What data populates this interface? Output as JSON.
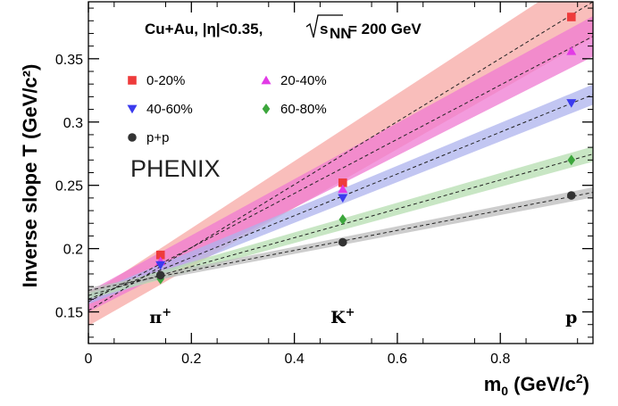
{
  "chart_data": {
    "type": "scatter",
    "title": "",
    "header": {
      "system": "Cu+Au, |η|<0.35,",
      "energy_value": "= 200 GeV",
      "energy_symbol": "s",
      "energy_subscript": "NN"
    },
    "experiment_label": "PHENIX",
    "xlabel": {
      "main": "m",
      "sub": "0",
      "units": " (GeV/c",
      "sup": "2",
      "close": ")"
    },
    "ylabel": "Inverse slope T (GeV/c²)",
    "xlim": [
      0,
      0.98
    ],
    "ylim": [
      0.125,
      0.395
    ],
    "x_ticks": [
      0,
      0.2,
      0.4,
      0.6,
      0.8
    ],
    "x_tick_labels": [
      "0",
      "0.2",
      "0.4",
      "0.6",
      "0.8"
    ],
    "y_ticks": [
      0.15,
      0.2,
      0.25,
      0.3,
      0.35
    ],
    "y_tick_labels": [
      "0.15",
      "0.2",
      "0.25",
      "0.3",
      "0.35"
    ],
    "particle_labels": [
      {
        "text": "π",
        "sup": "+",
        "x": 0.14
      },
      {
        "text": "K",
        "sup": "+",
        "x": 0.494
      },
      {
        "text": "p",
        "sup": "",
        "x": 0.938
      }
    ],
    "grid": false,
    "legend_position": "top-left",
    "series": [
      {
        "name": "0-20%",
        "marker": "square",
        "color": "#ee3b3b",
        "band_color": "#f7a8a4",
        "x": [
          0.14,
          0.494,
          0.938
        ],
        "y": [
          0.195,
          0.252,
          0.383
        ],
        "fit": {
          "intercept": 0.151,
          "slope": 0.249,
          "band_at_0": 0.012,
          "band_at_max": 0.028
        }
      },
      {
        "name": "20-40%",
        "marker": "triangle-up",
        "color": "#e23ae6",
        "band_color": "#ef79d2",
        "x": [
          0.14,
          0.494,
          0.938
        ],
        "y": [
          0.19,
          0.247,
          0.356
        ],
        "fit": {
          "intercept": 0.158,
          "slope": 0.214,
          "band_at_0": 0.008,
          "band_at_max": 0.016
        }
      },
      {
        "name": "40-60%",
        "marker": "triangle-down",
        "color": "#3b3bee",
        "band_color": "#aeb3ee",
        "x": [
          0.14,
          0.494,
          0.938
        ],
        "y": [
          0.187,
          0.24,
          0.315
        ],
        "fit": {
          "intercept": 0.16,
          "slope": 0.165,
          "band_at_0": 0.004,
          "band_at_max": 0.008
        }
      },
      {
        "name": "60-80%",
        "marker": "diamond",
        "color": "#3ca63c",
        "band_color": "#b6ddb0",
        "x": [
          0.14,
          0.494,
          0.938
        ],
        "y": [
          0.176,
          0.223,
          0.27
        ],
        "fit": {
          "intercept": 0.163,
          "slope": 0.114,
          "band_at_0": 0.003,
          "band_at_max": 0.006
        }
      },
      {
        "name": "p+p",
        "marker": "circle",
        "color": "#333333",
        "band_color": "#bcbcbc",
        "x": [
          0.14,
          0.494,
          0.938
        ],
        "y": [
          0.179,
          0.205,
          0.242
        ],
        "fit": {
          "intercept": 0.167,
          "slope": 0.079,
          "band_at_0": 0.002,
          "band_at_max": 0.004
        }
      }
    ]
  }
}
